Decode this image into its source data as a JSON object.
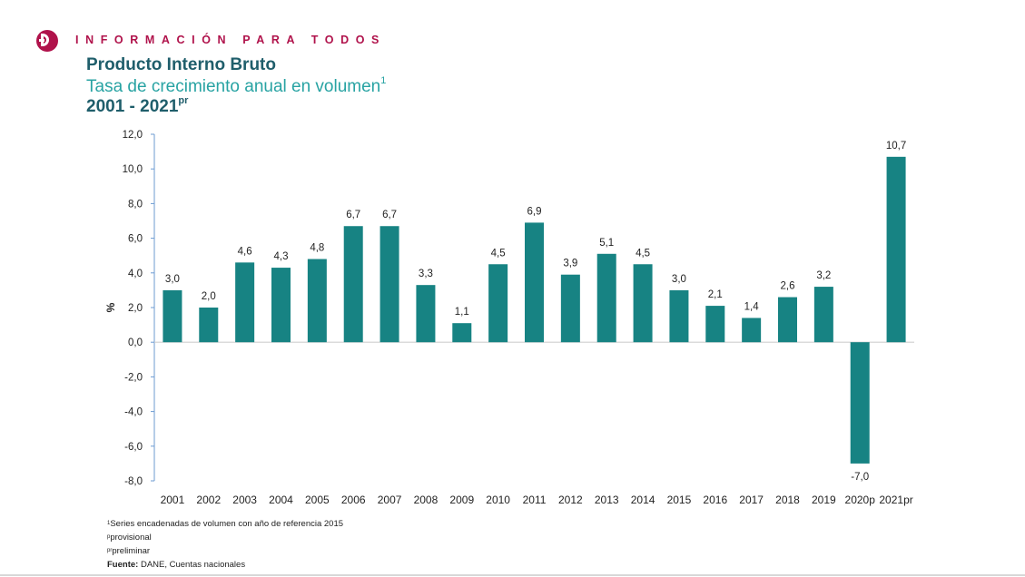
{
  "header": {
    "tagline": "INFORMACIÓN PARA TODOS",
    "logo_icon": "dane-logo-icon",
    "brand_color": "#b0124b"
  },
  "titles": {
    "title": "Producto Interno Bruto",
    "subtitle": "Tasa de crecimiento anual en volumen",
    "subtitle_sup": "1",
    "period": "2001 - 2021",
    "period_sup": "pr"
  },
  "chart_data": {
    "type": "bar",
    "title": "Producto Interno Bruto",
    "ylabel": "%",
    "xlabel": "",
    "ylim": [
      -8,
      12
    ],
    "yticks": [
      "12,0",
      "10,0",
      "8,0",
      "6,0",
      "4,0",
      "2,0",
      "0,0",
      "-2,0",
      "-4,0",
      "-6,0",
      "-8,0"
    ],
    "ytick_values": [
      12,
      10,
      8,
      6,
      4,
      2,
      0,
      -2,
      -4,
      -6,
      -8
    ],
    "categories": [
      "2001",
      "2002",
      "2003",
      "2004",
      "2005",
      "2006",
      "2007",
      "2008",
      "2009",
      "2010",
      "2011",
      "2012",
      "2013",
      "2014",
      "2015",
      "2016",
      "2017",
      "2018",
      "2019",
      "2020p",
      "2021pr"
    ],
    "values": [
      3.0,
      2.0,
      4.6,
      4.3,
      4.8,
      6.7,
      6.7,
      3.3,
      1.1,
      4.5,
      6.9,
      3.9,
      5.1,
      4.5,
      3.0,
      2.1,
      1.4,
      2.6,
      3.2,
      -7.0,
      10.7
    ],
    "data_labels": [
      "3,0",
      "2,0",
      "4,6",
      "4,3",
      "4,8",
      "6,7",
      "6,7",
      "3,3",
      "1,1",
      "4,5",
      "6,9",
      "3,9",
      "5,1",
      "4,5",
      "3,0",
      "2,1",
      "1,4",
      "2,6",
      "3,2",
      "-7,0",
      "10,7"
    ],
    "bar_color": "#178383",
    "grid": false
  },
  "notes": {
    "note1_sup": "1",
    "note1": "Series encadenadas de volumen con año de referencia 2015",
    "note2_sup": "p",
    "note2": "provisional",
    "note3_sup": "pr",
    "note3": "preliminar",
    "source_label": "Fuente:",
    "source": " DANE, Cuentas nacionales"
  }
}
